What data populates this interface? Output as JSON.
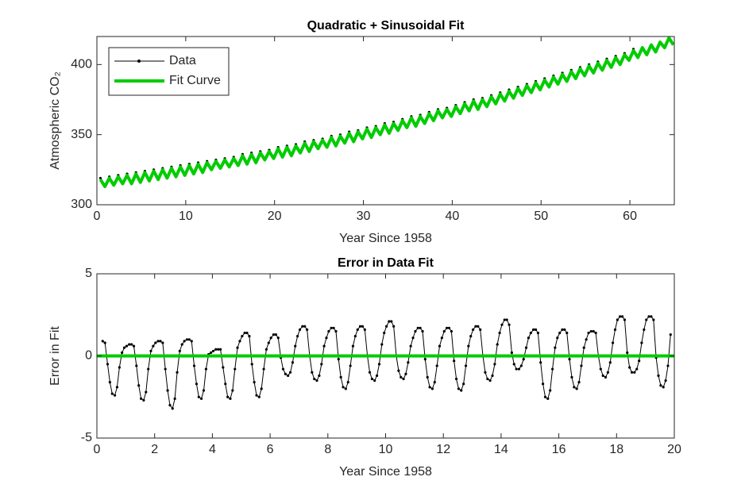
{
  "chart_data": [
    {
      "type": "line",
      "title": "Quadratic + Sinusoidal Fit",
      "xlabel": "Year Since 1958",
      "ylabel": "Atmospheric CO₂",
      "x": [
        0.4,
        0.9,
        1.4,
        1.9,
        2.4,
        2.9,
        3.4,
        3.9,
        4.4,
        4.9,
        5.4,
        5.9,
        6.4,
        6.9,
        7.4,
        7.9,
        8.4,
        8.9,
        9.4,
        9.9,
        10.4,
        10.9,
        11.4,
        11.9,
        12.4,
        12.9,
        13.4,
        13.9,
        14.4,
        14.9,
        15.4,
        15.9,
        16.4,
        16.9,
        17.4,
        17.9,
        18.4,
        18.9,
        19.4,
        19.9,
        20.4,
        20.9,
        21.4,
        21.9,
        22.4,
        22.9,
        23.4,
        23.9,
        24.4,
        24.9,
        25.4,
        25.9,
        26.4,
        26.9,
        27.4,
        27.9,
        28.4,
        28.9,
        29.4,
        29.9,
        30.4,
        30.9,
        31.4,
        31.9,
        32.4,
        32.9,
        33.4,
        33.9,
        34.4,
        34.9,
        35.4,
        35.9,
        36.4,
        36.9,
        37.4,
        37.9,
        38.4,
        38.9,
        39.4,
        39.9,
        40.4,
        40.9,
        41.4,
        41.9,
        42.4,
        42.9,
        43.4,
        43.9,
        44.4,
        44.9,
        45.4,
        45.9,
        46.4,
        46.9,
        47.4,
        47.9,
        48.4,
        48.9,
        49.4,
        49.9,
        50.4,
        50.9,
        51.4,
        51.9,
        52.4,
        52.9,
        53.4,
        53.9,
        54.4,
        54.9,
        55.4,
        55.9,
        56.4,
        56.9,
        57.4,
        57.9,
        58.4,
        58.9,
        59.4,
        59.9,
        60.4,
        60.9,
        61.4,
        61.9,
        62.4,
        62.9,
        63.4,
        63.9,
        64.4,
        64.9
      ],
      "series": [
        {
          "name": "Data",
          "color": "#000000",
          "marker": true,
          "values": [
            319,
            314,
            320,
            315,
            321,
            316,
            322,
            316,
            323,
            317,
            324,
            318,
            325,
            319,
            326,
            320,
            327,
            321,
            328,
            322,
            329,
            323,
            330,
            324,
            331,
            326,
            332,
            327,
            333,
            328,
            334,
            329,
            336,
            330,
            337,
            331,
            338,
            333,
            339,
            334,
            341,
            335,
            342,
            336,
            343,
            338,
            345,
            339,
            346,
            341,
            347,
            342,
            349,
            343,
            350,
            345,
            352,
            346,
            353,
            348,
            355,
            349,
            356,
            351,
            358,
            352,
            359,
            354,
            361,
            356,
            363,
            357,
            364,
            359,
            366,
            361,
            368,
            363,
            369,
            364,
            371,
            366,
            373,
            368,
            375,
            369,
            376,
            371,
            378,
            373,
            380,
            375,
            382,
            377,
            384,
            379,
            386,
            381,
            388,
            383,
            390,
            385,
            392,
            387,
            394,
            389,
            396,
            391,
            398,
            393,
            400,
            395,
            402,
            397,
            404,
            399,
            406,
            401,
            408,
            404,
            411,
            406,
            null,
            null,
            null,
            null,
            null,
            null,
            null,
            null
          ]
        },
        {
          "name": "Fit Curve",
          "color": "#00cc00",
          "marker": false,
          "values": [
            318,
            313,
            319,
            314,
            320,
            315,
            321,
            315,
            322,
            316,
            323,
            317,
            324,
            318,
            325,
            319,
            326,
            320,
            327,
            321,
            328,
            322,
            329,
            323,
            330,
            325,
            331,
            326,
            332,
            327,
            333,
            328,
            335,
            329,
            336,
            330,
            337,
            332,
            338,
            333,
            340,
            334,
            341,
            335,
            342,
            337,
            344,
            338,
            345,
            340,
            346,
            341,
            348,
            342,
            349,
            344,
            351,
            345,
            352,
            347,
            354,
            348,
            355,
            350,
            357,
            351,
            358,
            353,
            360,
            355,
            362,
            356,
            363,
            358,
            365,
            360,
            367,
            362,
            368,
            363,
            370,
            365,
            372,
            367,
            374,
            368,
            375,
            370,
            377,
            372,
            379,
            374,
            381,
            376,
            383,
            378,
            385,
            380,
            387,
            382,
            389,
            384,
            391,
            386,
            393,
            388,
            395,
            390,
            397,
            392,
            399,
            394,
            401,
            396,
            403,
            398,
            405,
            400,
            407,
            403,
            410,
            405,
            412,
            407,
            414,
            409,
            416,
            412,
            419,
            414
          ]
        }
      ],
      "xlim": [
        0,
        65
      ],
      "ylim": [
        300,
        420
      ],
      "xticks": [
        0,
        10,
        20,
        30,
        40,
        50,
        60
      ],
      "yticks": [
        300,
        350,
        400
      ],
      "legend": "northwest"
    },
    {
      "type": "line",
      "title": "Error in Data Fit",
      "xlabel": "Year Since 1958",
      "ylabel": "Error in Fit",
      "x": [
        0.2,
        0.28,
        0.37,
        0.45,
        0.53,
        0.62,
        0.7,
        0.78,
        0.87,
        0.95,
        1.03,
        1.12,
        1.2,
        1.28,
        1.37,
        1.45,
        1.53,
        1.62,
        1.7,
        1.78,
        1.87,
        1.95,
        2.03,
        2.12,
        2.2,
        2.28,
        2.37,
        2.45,
        2.53,
        2.62,
        2.7,
        2.78,
        2.87,
        2.95,
        3.03,
        3.12,
        3.2,
        3.28,
        3.37,
        3.45,
        3.53,
        3.62,
        3.7,
        3.78,
        3.87,
        3.95,
        4.03,
        4.12,
        4.2,
        4.28,
        4.37,
        4.45,
        4.53,
        4.62,
        4.7,
        4.78,
        4.87,
        4.95,
        5.03,
        5.12,
        5.2,
        5.28,
        5.37,
        5.45,
        5.53,
        5.62,
        5.7,
        5.78,
        5.87,
        5.95,
        6.03,
        6.12,
        6.2,
        6.28,
        6.37,
        6.45,
        6.53,
        6.62,
        6.7,
        6.78,
        6.87,
        6.95,
        7.03,
        7.12,
        7.2,
        7.28,
        7.37,
        7.45,
        7.53,
        7.62,
        7.7,
        7.78,
        7.87,
        7.95,
        8.03,
        8.12,
        8.2,
        8.28,
        8.37,
        8.45,
        8.53,
        8.62,
        8.7,
        8.78,
        8.87,
        8.95,
        9.03,
        9.12,
        9.2,
        9.28,
        9.37,
        9.45,
        9.53,
        9.62,
        9.7,
        9.78,
        9.87,
        9.95,
        10.03,
        10.12,
        10.2,
        10.28,
        10.37,
        10.45,
        10.53,
        10.62,
        10.7,
        10.78,
        10.87,
        10.95,
        11.03,
        11.12,
        11.2,
        11.28,
        11.37,
        11.45,
        11.53,
        11.62,
        11.7,
        11.78,
        11.87,
        11.95,
        12.03,
        12.12,
        12.2,
        12.28,
        12.37,
        12.45,
        12.53,
        12.62,
        12.7,
        12.78,
        12.87,
        12.95,
        13.03,
        13.12,
        13.2,
        13.28,
        13.37,
        13.45,
        13.53,
        13.62,
        13.7,
        13.78,
        13.87,
        13.95,
        14.03,
        14.12,
        14.2,
        14.28,
        14.37,
        14.45,
        14.53,
        14.62,
        14.7,
        14.78,
        14.87,
        14.95,
        15.03,
        15.12,
        15.2,
        15.28,
        15.37,
        15.45,
        15.53,
        15.62,
        15.7,
        15.78,
        15.87,
        15.95,
        16.03,
        16.12,
        16.2,
        16.28,
        16.37,
        16.45,
        16.53,
        16.62,
        16.7,
        16.78,
        16.87,
        16.95,
        17.03,
        17.12,
        17.2,
        17.28,
        17.37,
        17.45,
        17.53,
        17.62,
        17.7,
        17.78,
        17.87,
        17.95,
        18.03,
        18.12,
        18.2,
        18.28,
        18.37,
        18.45,
        18.53,
        18.62,
        18.7,
        18.78,
        18.87,
        18.95,
        19.03,
        19.12,
        19.2,
        19.28,
        19.37,
        19.45,
        19.53,
        19.62,
        19.7,
        19.78,
        19.87
      ],
      "series": [
        {
          "color": "#000000",
          "marker": true,
          "values": [
            0.9,
            0.8,
            -0.5,
            -1.6,
            -2.3,
            -2.4,
            -1.9,
            -0.7,
            0.2,
            0.5,
            0.6,
            0.7,
            0.7,
            0.6,
            -0.6,
            -1.8,
            -2.6,
            -2.7,
            -2.2,
            -0.8,
            0.3,
            0.6,
            0.8,
            0.9,
            0.9,
            0.8,
            -0.8,
            -2.1,
            -3.0,
            -3.2,
            -2.6,
            -1.0,
            0.3,
            0.7,
            0.9,
            1.0,
            1.0,
            0.9,
            -0.6,
            -1.7,
            -2.5,
            -2.6,
            -2.1,
            -0.8,
            0.1,
            0.2,
            0.3,
            0.4,
            0.4,
            0.4,
            -0.7,
            -1.7,
            -2.5,
            -2.6,
            -2.1,
            -0.8,
            0.5,
            0.9,
            1.2,
            1.4,
            1.4,
            1.2,
            -0.5,
            -1.6,
            -2.4,
            -2.5,
            -2.0,
            -0.8,
            0.4,
            0.8,
            1.1,
            1.3,
            1.3,
            1.1,
            -0.1,
            -0.8,
            -1.1,
            -1.2,
            -1.0,
            -0.4,
            0.6,
            1.2,
            1.6,
            1.8,
            1.8,
            1.6,
            0.0,
            -1.0,
            -1.4,
            -1.5,
            -1.2,
            -0.5,
            0.6,
            1.1,
            1.5,
            1.7,
            1.7,
            1.5,
            -0.2,
            -1.3,
            -1.9,
            -2.0,
            -1.6,
            -0.6,
            0.6,
            1.2,
            1.6,
            1.8,
            1.8,
            1.6,
            0.0,
            -1.0,
            -1.4,
            -1.5,
            -1.2,
            -0.5,
            0.7,
            1.4,
            1.8,
            2.1,
            2.1,
            1.8,
            0.0,
            -0.9,
            -1.3,
            -1.4,
            -1.1,
            -0.4,
            0.6,
            1.1,
            1.5,
            1.7,
            1.7,
            1.5,
            -0.2,
            -1.3,
            -1.9,
            -2.0,
            -1.6,
            -0.6,
            0.6,
            1.1,
            1.5,
            1.7,
            1.7,
            1.5,
            -0.3,
            -1.4,
            -2.0,
            -2.1,
            -1.7,
            -0.6,
            0.6,
            1.2,
            1.6,
            1.8,
            1.8,
            1.6,
            0.0,
            -1.0,
            -1.4,
            -1.5,
            -1.2,
            -0.5,
            0.7,
            1.4,
            1.9,
            2.2,
            2.2,
            1.9,
            0.2,
            -0.5,
            -0.8,
            -0.8,
            -0.6,
            -0.2,
            0.5,
            1.1,
            1.4,
            1.6,
            1.6,
            1.4,
            -0.4,
            -1.7,
            -2.5,
            -2.6,
            -2.1,
            -0.8,
            0.5,
            1.1,
            1.4,
            1.6,
            1.6,
            1.4,
            -0.2,
            -1.3,
            -1.9,
            -2.0,
            -1.6,
            -0.6,
            0.5,
            1.0,
            1.4,
            1.5,
            1.5,
            1.4,
            0.0,
            -0.8,
            -1.2,
            -1.3,
            -1.0,
            -0.4,
            0.8,
            1.6,
            2.2,
            2.4,
            2.4,
            2.2,
            0.2,
            -0.7,
            -1.0,
            -1.0,
            -0.8,
            -0.3,
            0.8,
            1.6,
            2.2,
            2.4,
            2.4,
            2.2,
            -0.1,
            -1.2,
            -1.8,
            -1.9,
            -1.5,
            -0.6,
            1.3
          ]
        },
        {
          "color": "#00cc00",
          "marker": false,
          "x": [
            0,
            20
          ],
          "values": [
            0,
            0
          ]
        }
      ],
      "xlim": [
        0,
        20
      ],
      "ylim": [
        -5,
        5
      ],
      "xticks": [
        0,
        2,
        4,
        6,
        8,
        10,
        12,
        14,
        16,
        18,
        20
      ],
      "yticks": [
        -5,
        0,
        5
      ]
    }
  ]
}
